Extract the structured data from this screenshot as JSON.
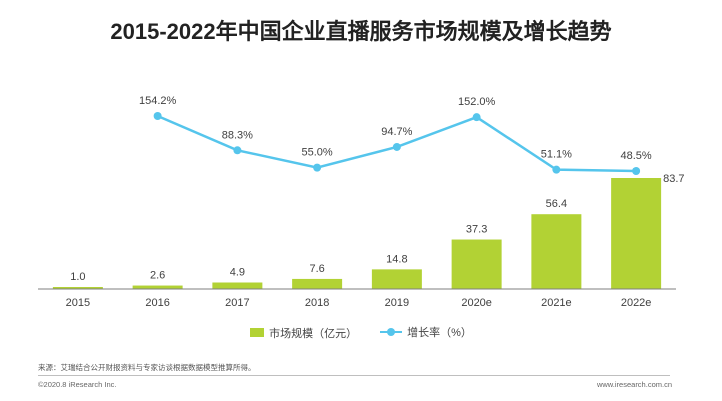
{
  "title": "2015-2022年中国企业直播服务市场规模及增长趋势",
  "chart_data": {
    "type": "bar",
    "categories": [
      "2015",
      "2016",
      "2017",
      "2018",
      "2019",
      "2020e",
      "2021e",
      "2022e"
    ],
    "series": [
      {
        "name": "市场规模（亿元）",
        "type": "bar",
        "color": "#b2d234",
        "values": [
          1.0,
          2.6,
          4.9,
          7.6,
          14.8,
          37.3,
          56.4,
          83.7
        ],
        "labels": [
          "1.0",
          "2.6",
          "4.9",
          "7.6",
          "14.8",
          "37.3",
          "56.4",
          "83.7"
        ]
      },
      {
        "name": "增长率（%）",
        "type": "line",
        "color": "#55c5ec",
        "values": [
          null,
          154.2,
          88.3,
          55.0,
          94.7,
          152.0,
          51.1,
          48.5
        ],
        "labels": [
          "",
          "154.2%",
          "88.3%",
          "55.0%",
          "94.7%",
          "152.0%",
          "51.1%",
          "48.5%"
        ]
      }
    ],
    "legend_position": "bottom"
  },
  "footer": {
    "source": "来源：艾瑞结合公开财报资料与专家访谈根据数据模型推算所得。",
    "copyright": "©2020.8 iResearch Inc.",
    "site": "www.iresearch.com.cn"
  }
}
